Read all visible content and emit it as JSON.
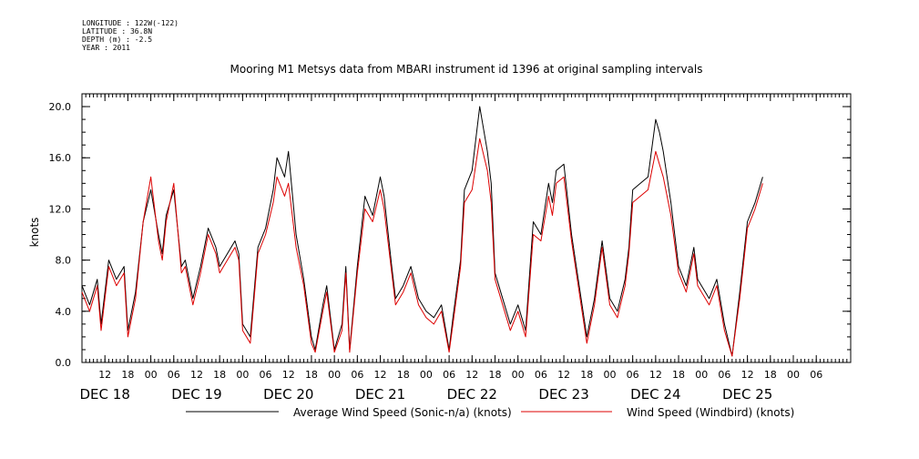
{
  "header": {
    "longitude": "LONGITUDE : 122W(-122)",
    "latitude": "LATITUDE : 36.8N",
    "depth": "DEPTH (m) : -2.5",
    "year": "YEAR : 2011"
  },
  "colors": {
    "series1": "#000000",
    "series2": "#dd0000"
  },
  "chart_data": {
    "type": "line",
    "title": "Mooring M1 Metsys data from MBARI instrument id 1396 at original sampling intervals",
    "ylabel": "knots",
    "ylim": [
      0,
      21
    ],
    "y_ticks": [
      0,
      4,
      8,
      12,
      16,
      20
    ],
    "y_tick_labels": [
      "0.0",
      "4.0",
      "8.0",
      "12.0",
      "16.0",
      "20.0"
    ],
    "xlim_hours": [
      0,
      201
    ],
    "x_hour_ticks": [
      {
        "h": 6,
        "label": "12"
      },
      {
        "h": 12,
        "label": "18"
      },
      {
        "h": 18,
        "label": "00"
      },
      {
        "h": 24,
        "label": "06"
      },
      {
        "h": 30,
        "label": "12"
      },
      {
        "h": 36,
        "label": "18"
      },
      {
        "h": 42,
        "label": "00"
      },
      {
        "h": 48,
        "label": "06"
      },
      {
        "h": 54,
        "label": "12"
      },
      {
        "h": 60,
        "label": "18"
      },
      {
        "h": 66,
        "label": "00"
      },
      {
        "h": 72,
        "label": "06"
      },
      {
        "h": 78,
        "label": "12"
      },
      {
        "h": 84,
        "label": "18"
      },
      {
        "h": 90,
        "label": "00"
      },
      {
        "h": 96,
        "label": "06"
      },
      {
        "h": 102,
        "label": "12"
      },
      {
        "h": 108,
        "label": "18"
      },
      {
        "h": 114,
        "label": "00"
      },
      {
        "h": 120,
        "label": "06"
      },
      {
        "h": 126,
        "label": "12"
      },
      {
        "h": 132,
        "label": "18"
      },
      {
        "h": 138,
        "label": "00"
      },
      {
        "h": 144,
        "label": "06"
      },
      {
        "h": 150,
        "label": "12"
      },
      {
        "h": 156,
        "label": "18"
      },
      {
        "h": 162,
        "label": "00"
      },
      {
        "h": 168,
        "label": "06"
      },
      {
        "h": 174,
        "label": "12"
      },
      {
        "h": 180,
        "label": "18"
      },
      {
        "h": 186,
        "label": "00"
      },
      {
        "h": 192,
        "label": "06"
      }
    ],
    "day_labels": [
      {
        "h": 6,
        "label": "DEC 18"
      },
      {
        "h": 30,
        "label": "DEC 19"
      },
      {
        "h": 54,
        "label": "DEC 20"
      },
      {
        "h": 78,
        "label": "DEC 21"
      },
      {
        "h": 102,
        "label": "DEC 22"
      },
      {
        "h": 126,
        "label": "DEC 23"
      },
      {
        "h": 150,
        "label": "DEC 24"
      },
      {
        "h": 174,
        "label": "DEC 25"
      }
    ],
    "x": [
      0,
      2,
      4,
      5,
      7,
      9,
      11,
      12,
      14,
      16,
      18,
      20,
      21,
      22,
      24,
      26,
      27,
      29,
      31,
      33,
      35,
      36,
      38,
      40,
      41,
      42,
      44,
      46,
      48,
      50,
      51,
      53,
      54,
      56,
      58,
      60,
      61,
      63,
      64,
      66,
      68,
      69,
      70,
      72,
      74,
      76,
      78,
      79,
      81,
      82,
      84,
      86,
      88,
      90,
      92,
      94,
      96,
      97,
      99,
      100,
      102,
      104,
      106,
      107,
      108,
      110,
      112,
      114,
      116,
      118,
      120,
      122,
      123,
      124,
      126,
      128,
      130,
      132,
      134,
      136,
      138,
      140,
      142,
      143,
      144,
      146,
      148,
      150,
      151,
      152,
      154,
      156,
      158,
      160,
      161,
      162,
      164,
      166,
      168,
      170,
      172,
      174,
      176,
      178,
      180,
      182,
      184,
      186,
      188,
      190,
      192,
      194,
      196,
      198,
      200
    ],
    "series": [
      {
        "name": "Average Wind Speed (Sonic-n/a) (knots)",
        "values": [
          6.0,
          4.5,
          6.5,
          3.0,
          8.0,
          6.5,
          7.5,
          2.5,
          5.5,
          11.0,
          13.5,
          10.0,
          8.5,
          11.5,
          13.5,
          7.5,
          8.0,
          5.0,
          7.5,
          10.5,
          9.0,
          7.5,
          8.5,
          9.5,
          8.5,
          3.0,
          2.0,
          9.0,
          10.5,
          13.5,
          16.0,
          14.5,
          16.5,
          10.0,
          6.5,
          2.0,
          1.0,
          4.5,
          6.0,
          1.0,
          3.0,
          7.5,
          1.0,
          7.5,
          13.0,
          11.5,
          14.5,
          13.0,
          7.5,
          5.0,
          6.0,
          7.5,
          5.0,
          4.0,
          3.5,
          4.5,
          1.0,
          3.5,
          8.0,
          13.5,
          15.0,
          20.0,
          16.5,
          14.0,
          7.0,
          5.0,
          3.0,
          4.5,
          2.5,
          11.0,
          10.0,
          14.0,
          12.5,
          15.0,
          15.5,
          10.0,
          6.0,
          2.0,
          5.0,
          9.5,
          5.0,
          4.0,
          6.5,
          9.0,
          13.5,
          14.0,
          14.5,
          19.0,
          18.0,
          16.5,
          12.5,
          7.5,
          6.0,
          9.0,
          6.5,
          6.0,
          5.0,
          6.5,
          3.0,
          0.5,
          5.5,
          11.0,
          12.5,
          14.5,
          null,
          null,
          null,
          null,
          null,
          null,
          null,
          null,
          null,
          null,
          null
        ]
      },
      {
        "name": "Wind Speed (Windbird) (knots)",
        "values": [
          5.5,
          4.0,
          6.0,
          2.5,
          7.5,
          6.0,
          7.0,
          2.0,
          5.0,
          11.0,
          14.5,
          9.5,
          8.0,
          11.0,
          14.0,
          7.0,
          7.5,
          4.5,
          7.0,
          10.0,
          8.5,
          7.0,
          8.0,
          9.0,
          8.0,
          2.5,
          1.5,
          8.5,
          10.0,
          12.5,
          14.5,
          13.0,
          14.0,
          9.0,
          6.0,
          1.5,
          0.8,
          4.0,
          5.5,
          0.8,
          2.5,
          7.0,
          0.8,
          7.0,
          12.0,
          11.0,
          13.5,
          12.0,
          7.0,
          4.5,
          5.5,
          7.0,
          4.5,
          3.5,
          3.0,
          4.0,
          0.8,
          3.0,
          7.5,
          12.5,
          13.5,
          17.5,
          15.0,
          12.5,
          6.5,
          4.5,
          2.5,
          4.0,
          2.0,
          10.0,
          9.5,
          13.0,
          11.5,
          14.0,
          14.5,
          9.5,
          5.5,
          1.5,
          4.5,
          9.0,
          4.5,
          3.5,
          6.0,
          8.5,
          12.5,
          13.0,
          13.5,
          16.5,
          15.5,
          14.5,
          11.5,
          7.0,
          5.5,
          8.5,
          6.0,
          5.5,
          4.5,
          6.0,
          2.5,
          0.5,
          5.0,
          10.5,
          12.0,
          14.0,
          null,
          null,
          null,
          null,
          null,
          null,
          null,
          null,
          null,
          null,
          null
        ]
      }
    ],
    "legend_placement": "bottom"
  }
}
